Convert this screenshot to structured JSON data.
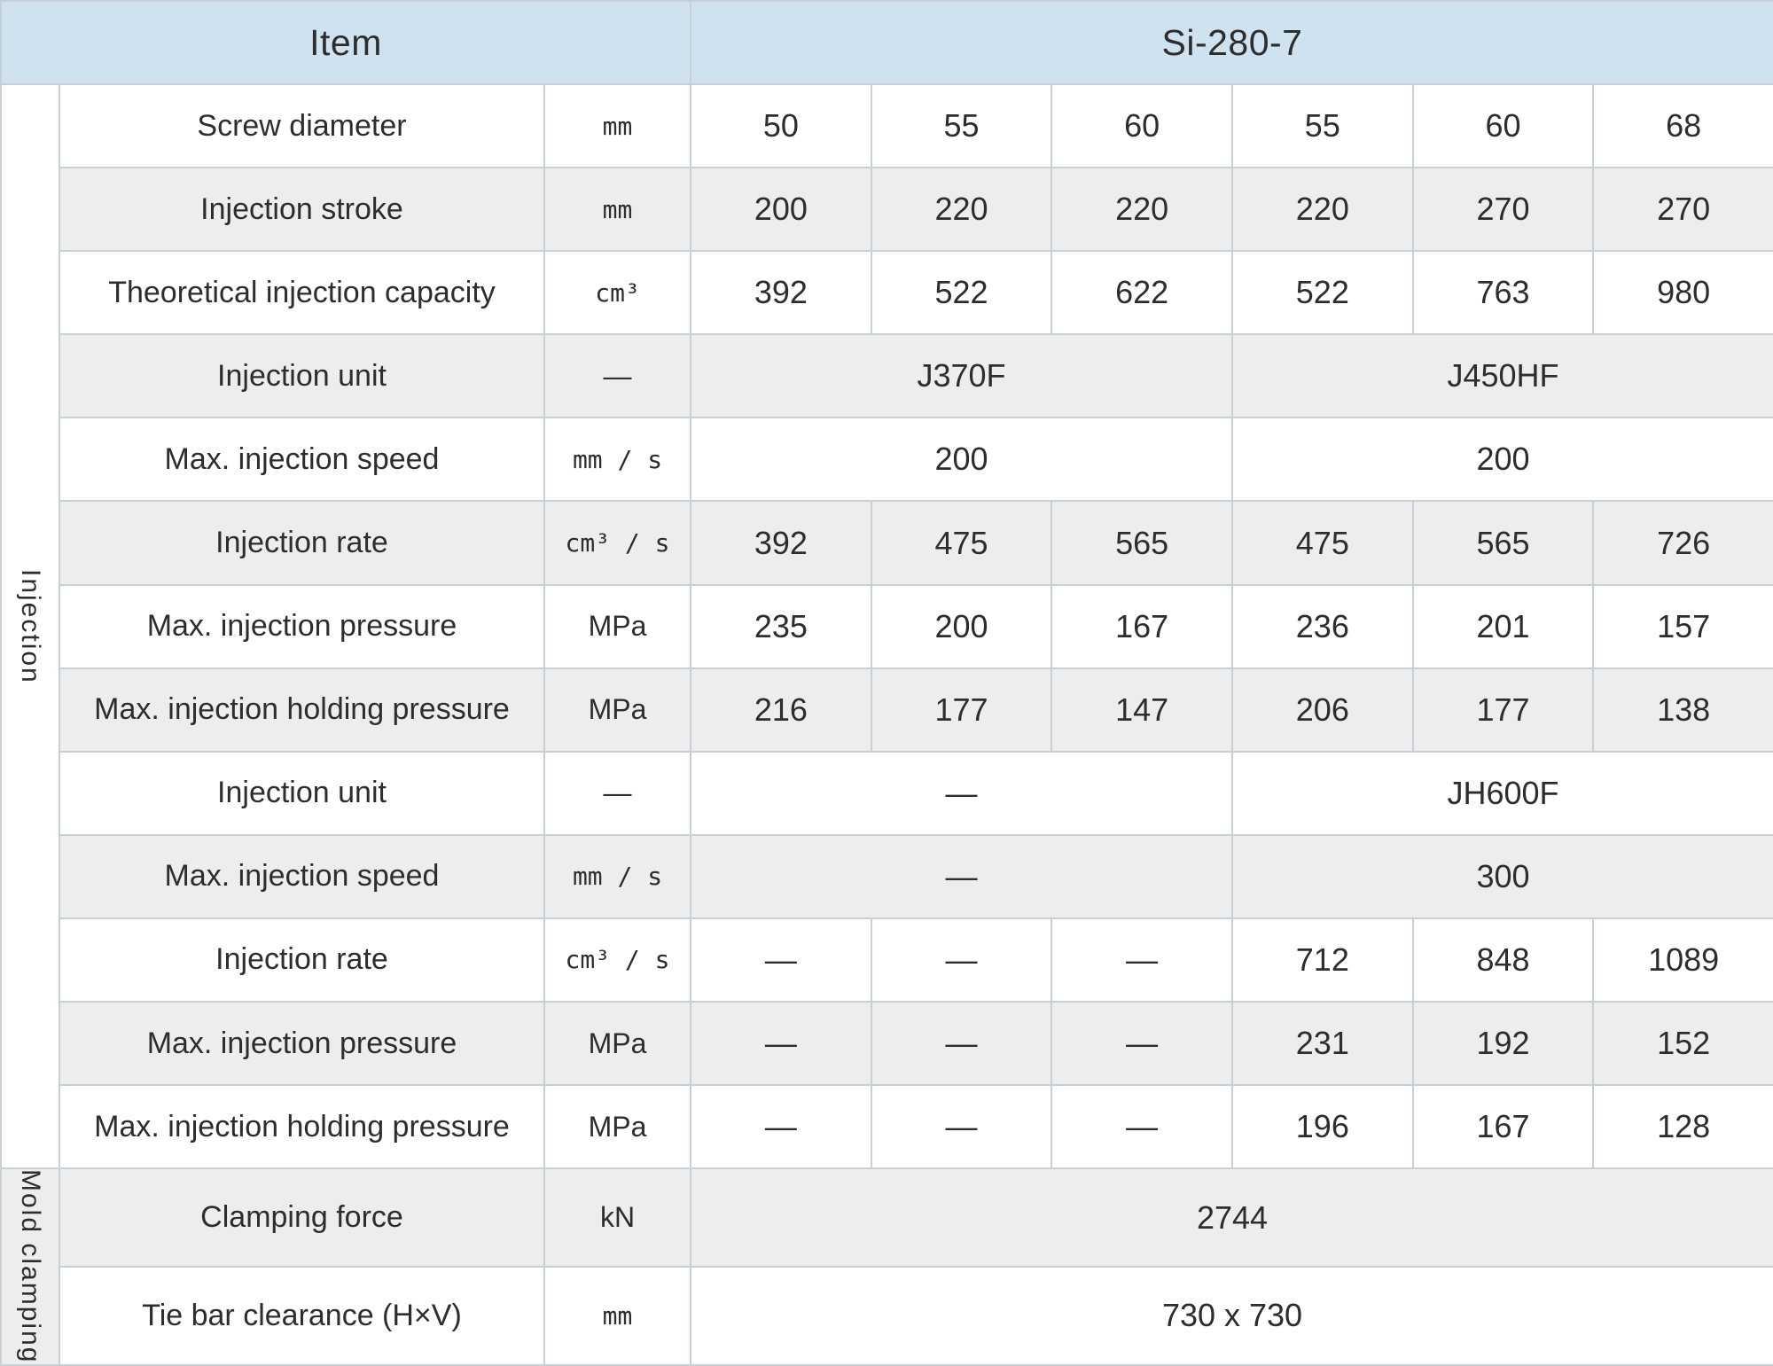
{
  "header": {
    "item_label": "Item",
    "model_label": "Si-280-7"
  },
  "colors": {
    "header_bg": "#cfe2f0",
    "stripe_bg": "#ededed",
    "border": "#c7d0d8",
    "text": "#2d2d2d"
  },
  "sections": [
    {
      "id": "injection",
      "label": "Injection",
      "rows": [
        {
          "item": "Screw diameter",
          "unit": "mm",
          "cells": [
            {
              "text": "50",
              "span": 1
            },
            {
              "text": "55",
              "span": 1
            },
            {
              "text": "60",
              "span": 1
            },
            {
              "text": "55",
              "span": 1
            },
            {
              "text": "60",
              "span": 1
            },
            {
              "text": "68",
              "span": 1
            }
          ]
        },
        {
          "item": "Injection stroke",
          "unit": "mm",
          "cells": [
            {
              "text": "200",
              "span": 1
            },
            {
              "text": "220",
              "span": 1
            },
            {
              "text": "220",
              "span": 1
            },
            {
              "text": "220",
              "span": 1
            },
            {
              "text": "270",
              "span": 1
            },
            {
              "text": "270",
              "span": 1
            }
          ]
        },
        {
          "item": "Theoretical injection capacity",
          "unit": "cm³",
          "cells": [
            {
              "text": "392",
              "span": 1
            },
            {
              "text": "522",
              "span": 1
            },
            {
              "text": "622",
              "span": 1
            },
            {
              "text": "522",
              "span": 1
            },
            {
              "text": "763",
              "span": 1
            },
            {
              "text": "980",
              "span": 1
            }
          ]
        },
        {
          "item": "Injection unit",
          "unit": "—",
          "cells": [
            {
              "text": "J370F",
              "span": 3
            },
            {
              "text": "J450HF",
              "span": 3
            }
          ]
        },
        {
          "item": "Max. injection speed",
          "unit": "mm / s",
          "cells": [
            {
              "text": "200",
              "span": 3
            },
            {
              "text": "200",
              "span": 3
            }
          ]
        },
        {
          "item": "Injection rate",
          "unit": "cm³ / s",
          "cells": [
            {
              "text": "392",
              "span": 1
            },
            {
              "text": "475",
              "span": 1
            },
            {
              "text": "565",
              "span": 1
            },
            {
              "text": "475",
              "span": 1
            },
            {
              "text": "565",
              "span": 1
            },
            {
              "text": "726",
              "span": 1
            }
          ]
        },
        {
          "item": "Max. injection pressure",
          "unit": "MPa",
          "cells": [
            {
              "text": "235",
              "span": 1
            },
            {
              "text": "200",
              "span": 1
            },
            {
              "text": "167",
              "span": 1
            },
            {
              "text": "236",
              "span": 1
            },
            {
              "text": "201",
              "span": 1
            },
            {
              "text": "157",
              "span": 1
            }
          ]
        },
        {
          "item": "Max. injection holding pressure",
          "unit": "MPa",
          "cells": [
            {
              "text": "216",
              "span": 1
            },
            {
              "text": "177",
              "span": 1
            },
            {
              "text": "147",
              "span": 1
            },
            {
              "text": "206",
              "span": 1
            },
            {
              "text": "177",
              "span": 1
            },
            {
              "text": "138",
              "span": 1
            }
          ]
        },
        {
          "item": "Injection unit",
          "unit": "—",
          "cells": [
            {
              "text": "—",
              "span": 3
            },
            {
              "text": "JH600F",
              "span": 3
            }
          ]
        },
        {
          "item": "Max. injection speed",
          "unit": "mm / s",
          "cells": [
            {
              "text": "—",
              "span": 3
            },
            {
              "text": "300",
              "span": 3
            }
          ]
        },
        {
          "item": "Injection rate",
          "unit": "cm³ / s",
          "cells": [
            {
              "text": "—",
              "span": 1
            },
            {
              "text": "—",
              "span": 1
            },
            {
              "text": "—",
              "span": 1
            },
            {
              "text": "712",
              "span": 1
            },
            {
              "text": "848",
              "span": 1
            },
            {
              "text": "1089",
              "span": 1
            }
          ]
        },
        {
          "item": "Max. injection pressure",
          "unit": "MPa",
          "cells": [
            {
              "text": "—",
              "span": 1
            },
            {
              "text": "—",
              "span": 1
            },
            {
              "text": "—",
              "span": 1
            },
            {
              "text": "231",
              "span": 1
            },
            {
              "text": "192",
              "span": 1
            },
            {
              "text": "152",
              "span": 1
            }
          ]
        },
        {
          "item": "Max. injection holding pressure",
          "unit": "MPa",
          "cells": [
            {
              "text": "—",
              "span": 1
            },
            {
              "text": "—",
              "span": 1
            },
            {
              "text": "—",
              "span": 1
            },
            {
              "text": "196",
              "span": 1
            },
            {
              "text": "167",
              "span": 1
            },
            {
              "text": "128",
              "span": 1
            }
          ]
        }
      ]
    },
    {
      "id": "mold-clamping",
      "label": "Mold clamping",
      "rows": [
        {
          "item": "Clamping force",
          "unit": "kN",
          "cells": [
            {
              "text": "2744",
              "span": 6
            }
          ]
        },
        {
          "item": "Tie bar clearance (H×V)",
          "unit": "mm",
          "cells": [
            {
              "text": "730 x 730",
              "span": 6
            }
          ]
        }
      ]
    }
  ]
}
